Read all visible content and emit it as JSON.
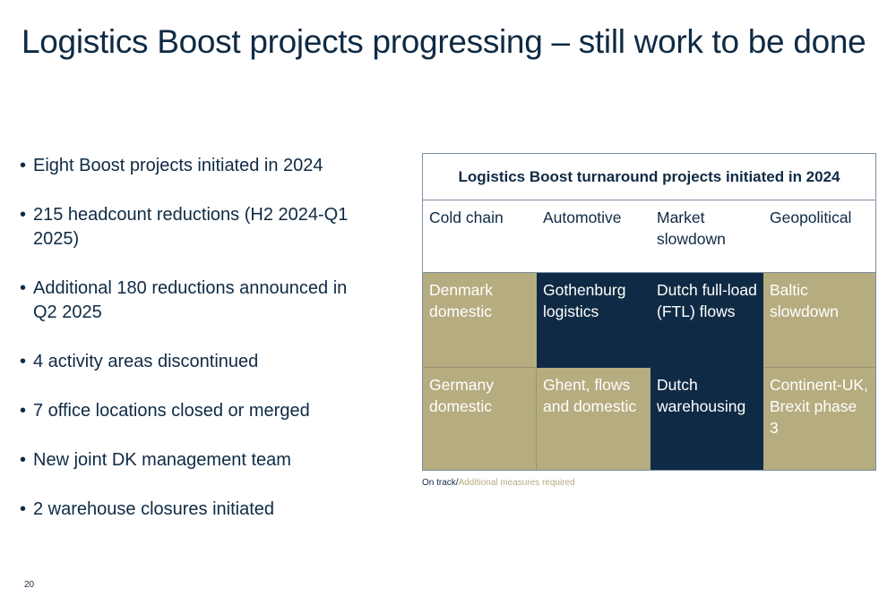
{
  "slide": {
    "title": "Logistics Boost projects progressing – still work to be done",
    "page_number": "20"
  },
  "bullets": [
    "Eight Boost projects initiated in 2024",
    "215 headcount reductions (H2 2024-Q1 2025)",
    "Additional 180 reductions announced in Q2 2025",
    "4 activity areas discontinued",
    "7 office locations closed or merged",
    "New joint DK management team",
    "2 warehouse closures initiated"
  ],
  "table": {
    "title": "Logistics Boost turnaround projects initiated in 2024",
    "headers": [
      "Cold chain",
      "Automotive",
      "Market slowdown",
      "Geopolitical"
    ],
    "rows": [
      [
        {
          "text": "Denmark domestic",
          "status": "Additional measures required"
        },
        {
          "text": "Gothenburg logistics",
          "status": "On track"
        },
        {
          "text": "Dutch full-load (FTL) flows",
          "status": "On track"
        },
        {
          "text": "Baltic slowdown",
          "status": "Additional measures required"
        }
      ],
      [
        {
          "text": "Germany domestic",
          "status": "Additional measures required"
        },
        {
          "text": "Ghent, flows and domestic",
          "status": "Additional measures required"
        },
        {
          "text": "Dutch warehousing",
          "status": "On track"
        },
        {
          "text": "Continent-UK, Brexit phase 3",
          "status": "Additional measures required"
        }
      ]
    ]
  },
  "legend": {
    "on_track": "On track",
    "separator": "/",
    "additional": "Additional measures required"
  },
  "colors": {
    "on_track": "#0f2a44",
    "additional": "#b5ac7f"
  }
}
